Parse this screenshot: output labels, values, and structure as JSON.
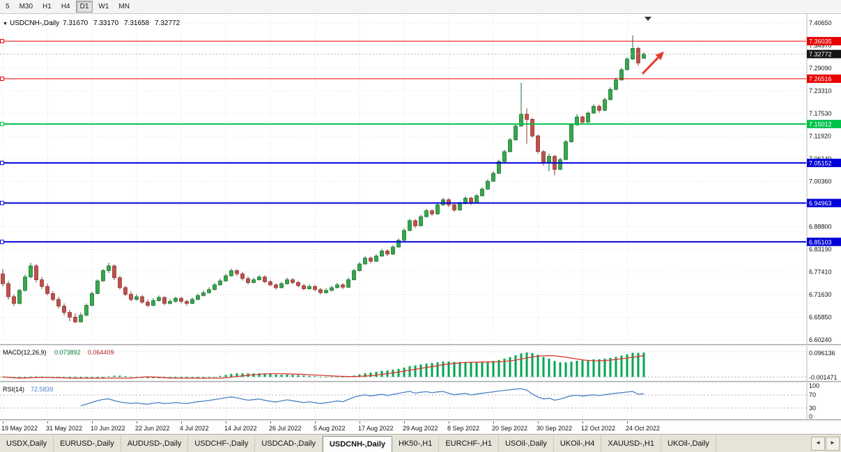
{
  "toolbar": {
    "periods": [
      {
        "label": "5",
        "active": false
      },
      {
        "label": "M30",
        "active": false
      },
      {
        "label": "H1",
        "active": false
      },
      {
        "label": "H4",
        "active": false
      },
      {
        "label": "D1",
        "active": true
      },
      {
        "label": "W1",
        "active": false
      },
      {
        "label": "MN",
        "active": false
      }
    ]
  },
  "tabs": {
    "items": [
      {
        "label": "USDX,Daily",
        "active": false
      },
      {
        "label": "EURUSD-,Daily",
        "active": false
      },
      {
        "label": "AUDUSD-,Daily",
        "active": false
      },
      {
        "label": "USDCHF-,Daily",
        "active": false
      },
      {
        "label": "USDCAD-,Daily",
        "active": false
      },
      {
        "label": "USDCNH-,Daily",
        "active": true
      },
      {
        "label": "HK50-,H1",
        "active": false
      },
      {
        "label": "EURCHF-,H1",
        "active": false
      },
      {
        "label": "USOil-,Daily",
        "active": false
      },
      {
        "label": "UKOil-,H4",
        "active": false
      },
      {
        "label": "XAUUSD-,H1",
        "active": false
      },
      {
        "label": "UKOil-,Daily",
        "active": false
      }
    ],
    "scroll_left": "◄",
    "scroll_right": "►"
  },
  "chart_data": {
    "type": "candlestick",
    "symbol_line": {
      "expander": "▼",
      "title": "USDCNH-,Daily",
      "open": "7.31670",
      "high": "7.33170",
      "low": "7.31658",
      "close": "7.32772"
    },
    "price_axis_range": {
      "top": 7.4065,
      "bottom": 6.6024
    },
    "price_axis_labels": [
      "7.40650",
      "7.34970",
      "7.29090",
      "7.23310",
      "7.17530",
      "7.11920",
      "7.06140",
      "7.00360",
      "6.94580",
      "6.88800",
      "6.83190",
      "6.77410",
      "6.71630",
      "6.65850",
      "6.60240"
    ],
    "date_axis": [
      "19 May 2022",
      "31 May 2022",
      "10 Jun 2022",
      "22 Jun 2022",
      "4 Jul 2022",
      "14 Jul 2022",
      "26 Jul 2022",
      "5 Aug 2022",
      "17 Aug 2022",
      "29 Aug 2022",
      "8 Sep 2022",
      "20 Sep 2022",
      "30 Sep 2022",
      "12 Oct 2022",
      "24 Oct 2022"
    ],
    "date_tick_indices": [
      0,
      8,
      16,
      24,
      32,
      40,
      48,
      56,
      64,
      72,
      80,
      88,
      96,
      104,
      112
    ],
    "hlines": [
      {
        "price": 7.36035,
        "label": "7.36035",
        "color": "#E60000",
        "width": 1
      },
      {
        "price": 7.26516,
        "label": "7.26516",
        "color": "#E60000",
        "width": 1
      },
      {
        "price": 7.15012,
        "label": "7.15012",
        "color": "#00C24B",
        "width": 2
      },
      {
        "price": 7.05152,
        "label": "7.05152",
        "color": "#0000D8",
        "width": 2
      },
      {
        "price": 6.94963,
        "label": "6.94963",
        "color": "#0000D8",
        "width": 2
      },
      {
        "price": 6.85103,
        "label": "6.85103",
        "color": "#0000D8",
        "width": 2
      }
    ],
    "current_price": {
      "value": 7.32772,
      "label": "7.32772"
    },
    "annotations": {
      "arrow_color": "#E8392E",
      "shift_marker_color": "#333333"
    },
    "colors": {
      "up": "#35A84C",
      "up_border": "#1E7030",
      "down": "#C0504D",
      "down_border": "#8C3530",
      "grid": "#D9D9D9",
      "macd_hist": "#00A651",
      "macd_signal": "#D9342B",
      "rsi": "#4A80C4"
    },
    "indicators": {
      "macd": {
        "label": "MACD(12,26,9)",
        "value_main": "0.073892",
        "value_signal": "0.064409",
        "axis_max": "0.096136",
        "axis_min": "-0.001471"
      },
      "rsi": {
        "label": "RSI(14)",
        "value": "72.5839",
        "axis_labels": [
          "100",
          "70",
          "30",
          "0"
        ],
        "levels": [
          70,
          30
        ]
      }
    },
    "candles": [
      [
        6.77,
        6.782,
        6.738,
        6.745
      ],
      [
        6.745,
        6.752,
        6.705,
        6.712
      ],
      [
        6.712,
        6.718,
        6.688,
        6.695
      ],
      [
        6.695,
        6.732,
        6.692,
        6.728
      ],
      [
        6.728,
        6.768,
        6.725,
        6.762
      ],
      [
        6.762,
        6.798,
        6.758,
        6.79
      ],
      [
        6.79,
        6.795,
        6.748,
        6.755
      ],
      [
        6.755,
        6.762,
        6.732,
        6.738
      ],
      [
        6.738,
        6.745,
        6.715,
        6.72
      ],
      [
        6.72,
        6.726,
        6.7,
        6.705
      ],
      [
        6.705,
        6.712,
        6.682,
        6.688
      ],
      [
        6.688,
        6.695,
        6.665,
        6.672
      ],
      [
        6.672,
        6.678,
        6.65,
        6.66
      ],
      [
        6.66,
        6.67,
        6.645,
        6.648
      ],
      [
        6.648,
        6.672,
        6.646,
        6.665
      ],
      [
        6.665,
        6.695,
        6.662,
        6.69
      ],
      [
        6.69,
        6.725,
        6.688,
        6.72
      ],
      [
        6.72,
        6.756,
        6.718,
        6.752
      ],
      [
        6.752,
        6.782,
        6.75,
        6.778
      ],
      [
        6.778,
        6.798,
        6.772,
        6.79
      ],
      [
        6.79,
        6.794,
        6.755,
        6.76
      ],
      [
        6.76,
        6.765,
        6.73,
        6.735
      ],
      [
        6.735,
        6.74,
        6.713,
        6.718
      ],
      [
        6.718,
        6.725,
        6.7,
        6.705
      ],
      [
        6.705,
        6.718,
        6.702,
        6.712
      ],
      [
        6.712,
        6.716,
        6.694,
        6.698
      ],
      [
        6.698,
        6.705,
        6.685,
        6.69
      ],
      [
        6.69,
        6.708,
        6.688,
        6.702
      ],
      [
        6.702,
        6.715,
        6.699,
        6.71
      ],
      [
        6.71,
        6.713,
        6.69,
        6.695
      ],
      [
        6.695,
        6.706,
        6.692,
        6.7
      ],
      [
        6.7,
        6.712,
        6.697,
        6.708
      ],
      [
        6.708,
        6.711,
        6.695,
        6.7
      ],
      [
        6.7,
        6.704,
        6.689,
        6.695
      ],
      [
        6.695,
        6.71,
        6.693,
        6.705
      ],
      [
        6.705,
        6.72,
        6.703,
        6.715
      ],
      [
        6.715,
        6.728,
        6.712,
        6.722
      ],
      [
        6.722,
        6.736,
        6.72,
        6.73
      ],
      [
        6.73,
        6.747,
        6.728,
        6.742
      ],
      [
        6.742,
        6.758,
        6.74,
        6.752
      ],
      [
        6.752,
        6.77,
        6.75,
        6.765
      ],
      [
        6.765,
        6.783,
        6.763,
        6.778
      ],
      [
        6.778,
        6.782,
        6.765,
        6.77
      ],
      [
        6.77,
        6.775,
        6.753,
        6.758
      ],
      [
        6.758,
        6.763,
        6.743,
        6.748
      ],
      [
        6.748,
        6.76,
        6.746,
        6.755
      ],
      [
        6.755,
        6.767,
        6.753,
        6.762
      ],
      [
        6.762,
        6.766,
        6.746,
        6.75
      ],
      [
        6.75,
        6.754,
        6.738,
        6.742
      ],
      [
        6.742,
        6.746,
        6.73,
        6.735
      ],
      [
        6.735,
        6.75,
        6.733,
        6.745
      ],
      [
        6.745,
        6.76,
        6.743,
        6.755
      ],
      [
        6.755,
        6.759,
        6.744,
        6.748
      ],
      [
        6.748,
        6.752,
        6.736,
        6.74
      ],
      [
        6.74,
        6.744,
        6.728,
        6.732
      ],
      [
        6.732,
        6.743,
        6.73,
        6.738
      ],
      [
        6.738,
        6.742,
        6.726,
        6.73
      ],
      [
        6.73,
        6.734,
        6.718,
        6.722
      ],
      [
        6.722,
        6.733,
        6.72,
        6.728
      ],
      [
        6.728,
        6.74,
        6.726,
        6.735
      ],
      [
        6.735,
        6.747,
        6.733,
        6.742
      ],
      [
        6.742,
        6.746,
        6.731,
        6.736
      ],
      [
        6.736,
        6.76,
        6.734,
        6.755
      ],
      [
        6.755,
        6.783,
        6.753,
        6.778
      ],
      [
        6.778,
        6.8,
        6.776,
        6.795
      ],
      [
        6.795,
        6.815,
        6.793,
        6.81
      ],
      [
        6.81,
        6.814,
        6.797,
        6.802
      ],
      [
        6.802,
        6.82,
        6.8,
        6.815
      ],
      [
        6.815,
        6.833,
        6.813,
        6.828
      ],
      [
        6.828,
        6.832,
        6.815,
        6.82
      ],
      [
        6.82,
        6.843,
        6.818,
        6.838
      ],
      [
        6.838,
        6.86,
        6.836,
        6.855
      ],
      [
        6.855,
        6.885,
        6.853,
        6.88
      ],
      [
        6.88,
        6.91,
        6.878,
        6.905
      ],
      [
        6.905,
        6.909,
        6.887,
        6.892
      ],
      [
        6.892,
        6.92,
        6.89,
        6.915
      ],
      [
        6.915,
        6.935,
        6.913,
        6.93
      ],
      [
        6.93,
        6.934,
        6.917,
        6.922
      ],
      [
        6.922,
        6.95,
        6.92,
        6.945
      ],
      [
        6.945,
        6.963,
        6.943,
        6.958
      ],
      [
        6.958,
        6.962,
        6.94,
        6.945
      ],
      [
        6.945,
        6.949,
        6.927,
        6.932
      ],
      [
        6.932,
        6.953,
        6.93,
        6.948
      ],
      [
        6.948,
        6.967,
        6.946,
        6.962
      ],
      [
        6.962,
        6.966,
        6.945,
        6.95
      ],
      [
        6.95,
        6.973,
        6.948,
        6.968
      ],
      [
        6.968,
        6.99,
        6.966,
        6.985
      ],
      [
        6.985,
        7.01,
        6.983,
        7.005
      ],
      [
        7.005,
        7.03,
        7.003,
        7.025
      ],
      [
        7.025,
        7.06,
        7.023,
        7.055
      ],
      [
        7.055,
        7.085,
        7.053,
        7.08
      ],
      [
        7.08,
        7.115,
        7.078,
        7.11
      ],
      [
        7.11,
        7.15,
        7.108,
        7.145
      ],
      [
        7.145,
        7.255,
        7.143,
        7.175
      ],
      [
        7.175,
        7.19,
        7.1,
        7.162
      ],
      [
        7.162,
        7.166,
        7.115,
        7.12
      ],
      [
        7.12,
        7.124,
        7.075,
        7.08
      ],
      [
        7.08,
        7.084,
        7.045,
        7.052
      ],
      [
        7.052,
        7.075,
        7.03,
        7.068
      ],
      [
        7.068,
        7.072,
        7.02,
        7.035
      ],
      [
        7.035,
        7.065,
        7.033,
        7.06
      ],
      [
        7.06,
        7.11,
        7.058,
        7.105
      ],
      [
        7.105,
        7.152,
        7.103,
        7.148
      ],
      [
        7.148,
        7.175,
        7.146,
        7.168
      ],
      [
        7.168,
        7.172,
        7.148,
        7.155
      ],
      [
        7.155,
        7.182,
        7.153,
        7.178
      ],
      [
        7.178,
        7.2,
        7.176,
        7.195
      ],
      [
        7.195,
        7.199,
        7.179,
        7.185
      ],
      [
        7.185,
        7.217,
        7.183,
        7.212
      ],
      [
        7.212,
        7.243,
        7.21,
        7.238
      ],
      [
        7.238,
        7.268,
        7.236,
        7.262
      ],
      [
        7.262,
        7.293,
        7.26,
        7.288
      ],
      [
        7.288,
        7.32,
        7.286,
        7.315
      ],
      [
        7.315,
        7.375,
        7.313,
        7.342
      ],
      [
        7.342,
        7.346,
        7.298,
        7.305
      ],
      [
        7.3167,
        7.3317,
        7.3166,
        7.3277
      ]
    ]
  }
}
